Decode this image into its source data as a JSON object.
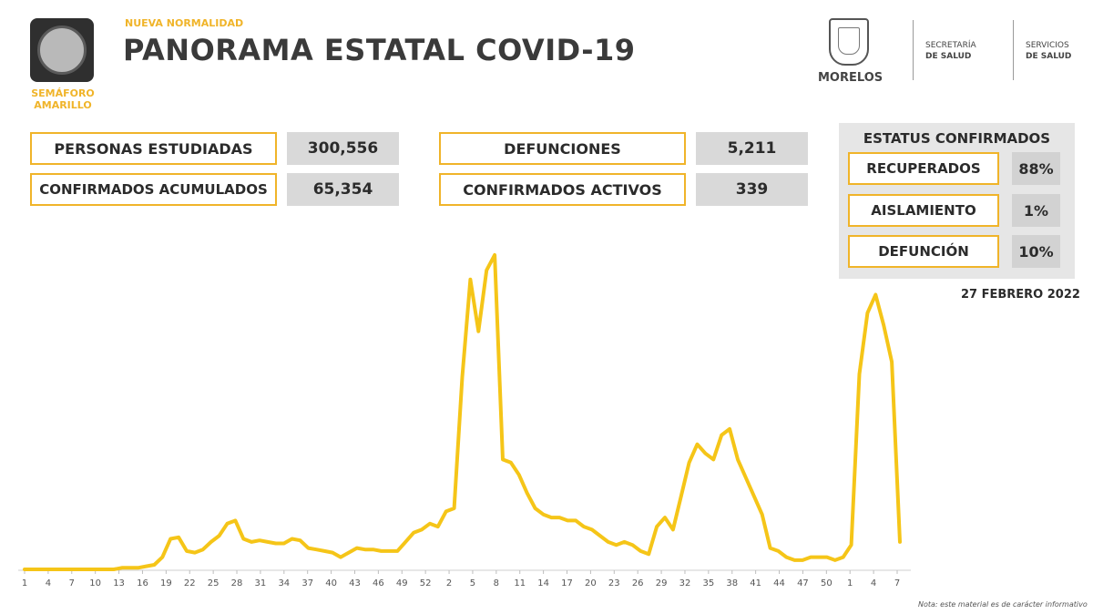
{
  "header": {
    "kicker": "NUEVA NORMALIDAD",
    "title": "PANORAMA ESTATAL COVID-19",
    "semaforo_line1": "SEMÁFORO",
    "semaforo_line2": "AMARILLO",
    "state": "MORELOS",
    "org1_line1": "SECRETARÍA",
    "org1_line2": "DE SALUD",
    "org2_line1": "SERVICIOS",
    "org2_line2": "DE SALUD"
  },
  "stats": {
    "estudiadas_label": "PERSONAS ESTUDIADAS",
    "estudiadas_value": "300,556",
    "acumulados_label": "CONFIRMADOS ACUMULADOS",
    "acumulados_value": "65,354",
    "defunciones_label": "DEFUNCIONES",
    "defunciones_value": "5,211",
    "activos_label": "CONFIRMADOS ACTIVOS",
    "activos_value": "339"
  },
  "status": {
    "title": "ESTATUS CONFIRMADOS",
    "items": [
      {
        "label": "RECUPERADOS",
        "value": "88%"
      },
      {
        "label": "AISLAMIENTO",
        "value": "1%"
      },
      {
        "label": "DEFUNCIÓN",
        "value": "10%"
      }
    ]
  },
  "date": "27 FEBRERO 2022",
  "note": "Nota: este material es de carácter informativo",
  "colors": {
    "accent": "#f0b429",
    "line": "#f5c518"
  },
  "chart_data": {
    "type": "line",
    "title": "",
    "xlabel": "",
    "ylabel": "",
    "grid": false,
    "tick_labels": [
      "1",
      "4",
      "7",
      "10",
      "13",
      "16",
      "19",
      "22",
      "25",
      "28",
      "31",
      "34",
      "37",
      "40",
      "43",
      "46",
      "49",
      "52",
      "2",
      "5",
      "8",
      "11",
      "14",
      "17",
      "20",
      "23",
      "26",
      "29",
      "32",
      "35",
      "38",
      "41",
      "44",
      "47",
      "50",
      "1",
      "4",
      "7"
    ],
    "ylim": [
      0,
      100
    ],
    "values": [
      0,
      0,
      0,
      0,
      0,
      0,
      0,
      0,
      0,
      0,
      0,
      0,
      0.5,
      0.5,
      0.5,
      1,
      1.5,
      4,
      10,
      10.5,
      6,
      5.5,
      6.5,
      9,
      11,
      15,
      16,
      10,
      9,
      9.5,
      9,
      8.5,
      8.5,
      10,
      9.5,
      7,
      6.5,
      6,
      5.5,
      4,
      5.5,
      7,
      6.5,
      6.5,
      6,
      6,
      6,
      9,
      12,
      13,
      15,
      14,
      19,
      20,
      63,
      95,
      78,
      98,
      103,
      36,
      35,
      31,
      25,
      20,
      18,
      17,
      17,
      16,
      16,
      14,
      13,
      11,
      9,
      8,
      9,
      8,
      6,
      5,
      14,
      17,
      13,
      24,
      35,
      41,
      38,
      36,
      44,
      46,
      36,
      30,
      24,
      18,
      7,
      6,
      4,
      3,
      3,
      4,
      4,
      4,
      3,
      4,
      8,
      64,
      84,
      90,
      80,
      68,
      9
    ],
    "series": [
      {
        "values_ref": "values",
        "color": "#f5c518"
      }
    ]
  }
}
